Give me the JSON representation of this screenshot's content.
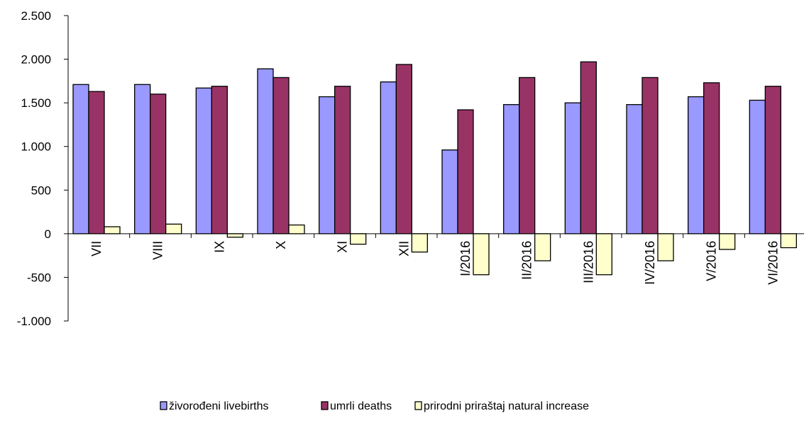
{
  "chart_data": {
    "type": "bar",
    "categories": [
      "VII",
      "VIII",
      "IX",
      "X",
      "XI",
      "XII",
      "I/2016",
      "II/2016",
      "III/2016",
      "IV/2016",
      "V/2016",
      "VI/2016"
    ],
    "series": [
      {
        "name": "živorođeni livebirths",
        "color": "#9999ff",
        "values": [
          1710,
          1710,
          1670,
          1890,
          1570,
          1740,
          960,
          1480,
          1500,
          1480,
          1570,
          1530
        ]
      },
      {
        "name": "umrli deaths",
        "color": "#993366",
        "values": [
          1630,
          1600,
          1690,
          1790,
          1690,
          1940,
          1420,
          1790,
          1970,
          1790,
          1730,
          1690
        ]
      },
      {
        "name": "prirodni priraštaj natural increase",
        "color": "#ffffcc",
        "values": [
          80,
          110,
          -40,
          100,
          -120,
          -210,
          -470,
          -310,
          -470,
          -310,
          -180,
          -160
        ]
      }
    ],
    "ylim": [
      -1000,
      2500
    ],
    "yticks": [
      2500,
      2000,
      1500,
      1000,
      500,
      0,
      -500,
      -1000
    ],
    "ytick_labels": [
      "2.500",
      "2.000",
      "1.500",
      "1.000",
      "500",
      "0",
      "-500",
      "-1.000"
    ],
    "grid": false,
    "legend_position": "bottom"
  }
}
